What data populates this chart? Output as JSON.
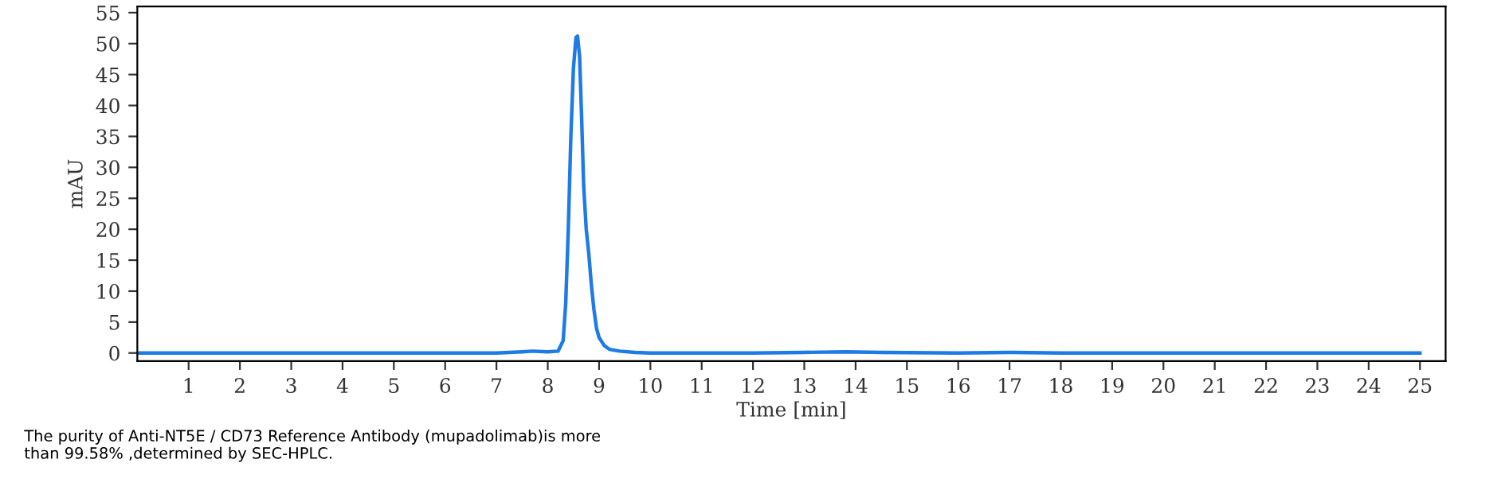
{
  "chart_data": {
    "type": "line",
    "xlabel": "Time [min]",
    "ylabel": "mAU",
    "x": [
      0,
      2,
      4,
      6,
      7,
      7.5,
      7.7,
      8.0,
      8.2,
      8.3,
      8.35,
      8.4,
      8.45,
      8.5,
      8.55,
      8.58,
      8.62,
      8.66,
      8.7,
      8.75,
      8.8,
      8.85,
      8.9,
      8.95,
      9.0,
      9.1,
      9.2,
      9.4,
      9.7,
      10,
      12,
      13,
      13.8,
      14.5,
      16,
      17,
      18,
      20,
      22,
      25
    ],
    "series": [
      {
        "color": "#1e7be6",
        "values": [
          0,
          0,
          0,
          0,
          0,
          0.2,
          0.3,
          0.2,
          0.3,
          2,
          8,
          20,
          35,
          46,
          51,
          51.2,
          48,
          38,
          27,
          20,
          16,
          11,
          7,
          4,
          2.5,
          1.2,
          0.6,
          0.3,
          0.1,
          0,
          0,
          0.1,
          0.2,
          0.1,
          0,
          0.1,
          0,
          0,
          0,
          0
        ]
      }
    ],
    "xlim": [
      0,
      25.5
    ],
    "ylim": [
      -1.3,
      56
    ],
    "xticks": [
      1,
      2,
      3,
      4,
      5,
      6,
      7,
      8,
      9,
      10,
      11,
      12,
      13,
      14,
      15,
      16,
      17,
      18,
      19,
      20,
      21,
      22,
      23,
      24,
      25
    ],
    "yticks": [
      0,
      5,
      10,
      15,
      20,
      25,
      30,
      35,
      40,
      45,
      50,
      55
    ],
    "grid": false,
    "legend": false,
    "marker": "none",
    "line_style": "solid",
    "annotations": [
      "The purity of Anti-NT5E / CD73 Reference Antibody (mupadolimab)is more\nthan 99.58% ,determined by SEC-HPLC."
    ]
  }
}
